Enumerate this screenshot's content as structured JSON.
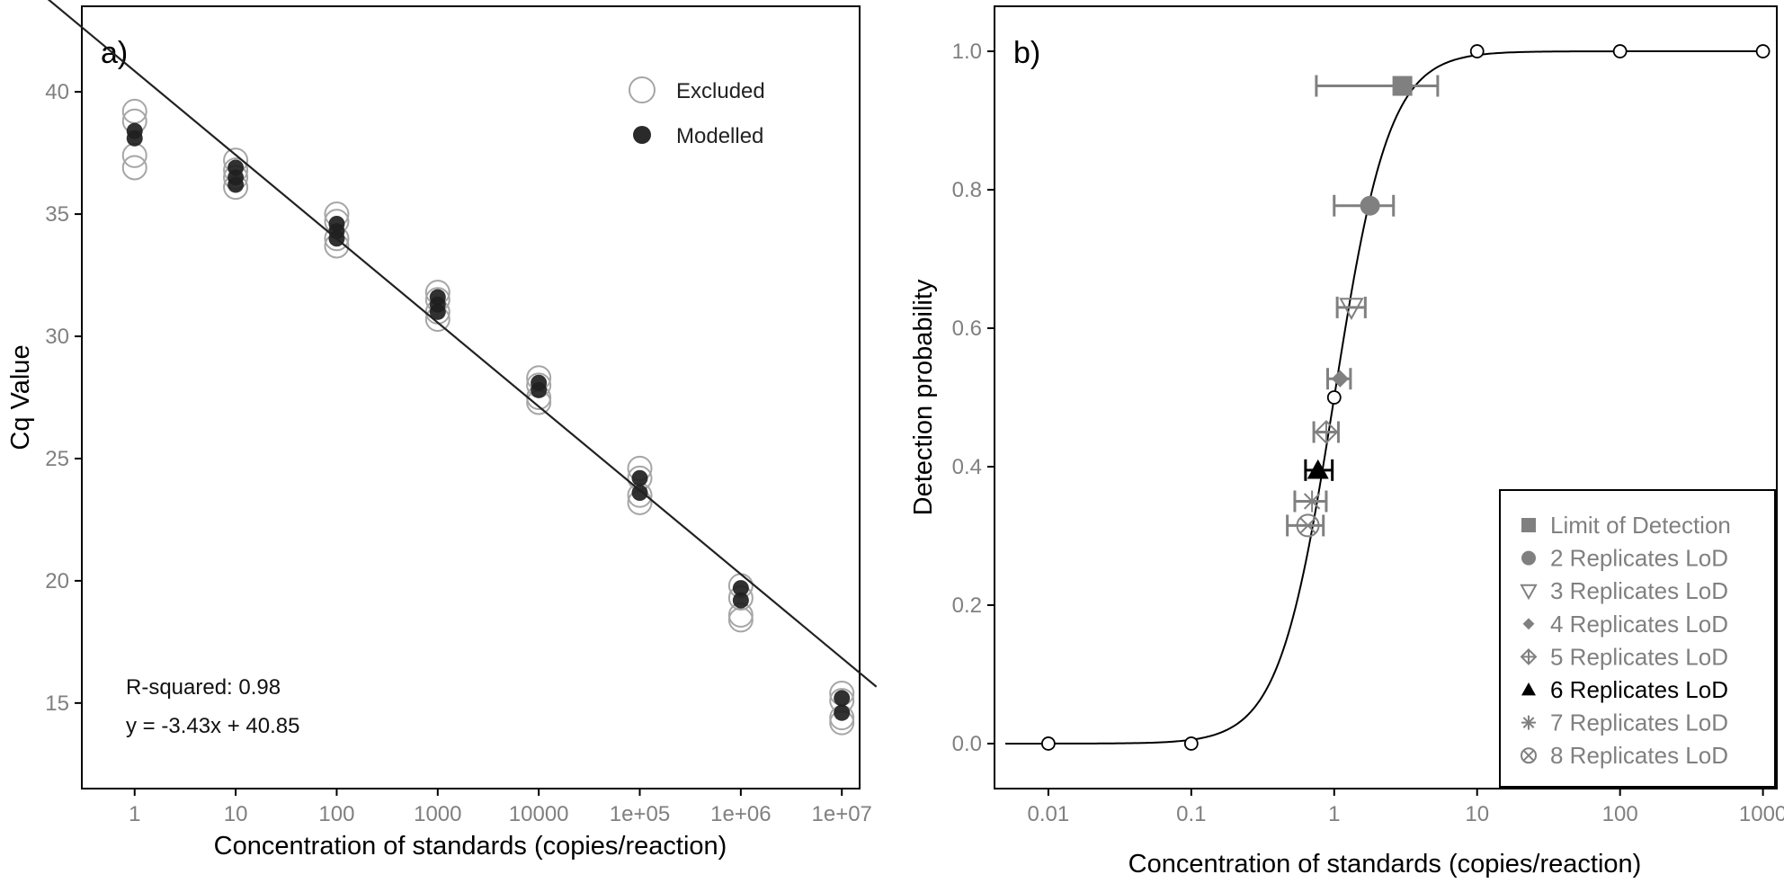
{
  "figure": {
    "panels": [
      "a)",
      "b)"
    ]
  },
  "colors": {
    "excluded": "#a6a6a6",
    "modelled": "#1f1f1f",
    "gray_marker": "#808080",
    "black_marker": "#000000",
    "axis": "#000000"
  },
  "chart_data": [
    {
      "id": "a",
      "type": "scatter",
      "panel_label": "a)",
      "xlabel": "Concentration of standards (copies/reaction)",
      "ylabel": "Cq Value",
      "x_scale": "log10",
      "x_ticks": [
        "1",
        "10",
        "100",
        "1000",
        "10000",
        "1e+05",
        "1e+06",
        "1e+07"
      ],
      "x_tick_values": [
        1,
        10,
        100,
        1000,
        10000,
        100000,
        1000000,
        10000000
      ],
      "xlim": [
        0.3,
        15000000
      ],
      "ylim": [
        11.5,
        43.5
      ],
      "y_ticks": [
        15,
        20,
        25,
        30,
        35,
        40
      ],
      "grid": false,
      "legend": {
        "position": "top-right",
        "entries": [
          {
            "label": "Excluded",
            "marker": "open-circle"
          },
          {
            "label": "Modelled",
            "marker": "filled-circle"
          }
        ]
      },
      "series": [
        {
          "name": "Excluded",
          "points": [
            {
              "x": 1,
              "y": 39.2
            },
            {
              "x": 1,
              "y": 38.8
            },
            {
              "x": 1,
              "y": 37.4
            },
            {
              "x": 1,
              "y": 36.9
            },
            {
              "x": 10,
              "y": 37.2
            },
            {
              "x": 10,
              "y": 36.8
            },
            {
              "x": 10,
              "y": 36.5
            },
            {
              "x": 10,
              "y": 36.1
            },
            {
              "x": 100,
              "y": 35.0
            },
            {
              "x": 100,
              "y": 34.7
            },
            {
              "x": 100,
              "y": 34.0
            },
            {
              "x": 100,
              "y": 33.7
            },
            {
              "x": 1000,
              "y": 31.8
            },
            {
              "x": 1000,
              "y": 31.5
            },
            {
              "x": 1000,
              "y": 31.0
            },
            {
              "x": 1000,
              "y": 30.7
            },
            {
              "x": 10000,
              "y": 28.3
            },
            {
              "x": 10000,
              "y": 28.0
            },
            {
              "x": 10000,
              "y": 27.5
            },
            {
              "x": 10000,
              "y": 27.3
            },
            {
              "x": 100000,
              "y": 24.6
            },
            {
              "x": 100000,
              "y": 24.2
            },
            {
              "x": 100000,
              "y": 23.5
            },
            {
              "x": 100000,
              "y": 23.2
            },
            {
              "x": 1000000,
              "y": 19.8
            },
            {
              "x": 1000000,
              "y": 19.3
            },
            {
              "x": 1000000,
              "y": 18.6
            },
            {
              "x": 1000000,
              "y": 18.4
            },
            {
              "x": 10000000,
              "y": 15.4
            },
            {
              "x": 10000000,
              "y": 15.1
            },
            {
              "x": 10000000,
              "y": 14.4
            },
            {
              "x": 10000000,
              "y": 14.2
            }
          ]
        },
        {
          "name": "Modelled",
          "points": [
            {
              "x": 1,
              "y": 38.4
            },
            {
              "x": 1,
              "y": 38.1
            },
            {
              "x": 10,
              "y": 36.9
            },
            {
              "x": 10,
              "y": 36.5
            },
            {
              "x": 10,
              "y": 36.2
            },
            {
              "x": 100,
              "y": 34.6
            },
            {
              "x": 100,
              "y": 34.3
            },
            {
              "x": 100,
              "y": 34.0
            },
            {
              "x": 1000,
              "y": 31.6
            },
            {
              "x": 1000,
              "y": 31.3
            },
            {
              "x": 1000,
              "y": 31.0
            },
            {
              "x": 10000,
              "y": 28.1
            },
            {
              "x": 10000,
              "y": 27.8
            },
            {
              "x": 100000,
              "y": 24.2
            },
            {
              "x": 100000,
              "y": 23.6
            },
            {
              "x": 1000000,
              "y": 19.7
            },
            {
              "x": 1000000,
              "y": 19.2
            },
            {
              "x": 10000000,
              "y": 15.2
            },
            {
              "x": 10000000,
              "y": 14.6
            }
          ]
        }
      ],
      "regression": {
        "slope": -3.43,
        "intercept": 40.85,
        "x_from": 0.13,
        "x_to": 22000000
      },
      "annotations": [
        "R-squared: 0.98",
        "y = -3.43x + 40.85"
      ]
    },
    {
      "id": "b",
      "type": "line",
      "panel_label": "b)",
      "xlabel": "Concentration of standards (copies/reaction)",
      "ylabel": "Detection probability",
      "x_scale": "log10",
      "x_ticks": [
        "0.01",
        "0.1",
        "1",
        "10",
        "100",
        "1000"
      ],
      "x_tick_values": [
        0.01,
        0.1,
        1,
        10,
        100,
        1000
      ],
      "xlim": [
        0.0042,
        1250
      ],
      "ylim": [
        -0.065,
        1.065
      ],
      "y_ticks": [
        "0.0",
        "0.2",
        "0.4",
        "0.6",
        "0.8",
        "1.0"
      ],
      "y_tick_values": [
        0,
        0.2,
        0.4,
        0.6,
        0.8,
        1.0
      ],
      "grid": false,
      "curve": {
        "model": "logistic-log10",
        "midpoint": 1.0,
        "slope": 5.2,
        "x_from": 0.005,
        "x_to": 1000
      },
      "observed_points": [
        {
          "x": 0.01,
          "y": 0.0
        },
        {
          "x": 0.1,
          "y": 0.0
        },
        {
          "x": 1,
          "y": 0.5
        },
        {
          "x": 10,
          "y": 1.0
        },
        {
          "x": 100,
          "y": 1.0
        },
        {
          "x": 1000,
          "y": 1.0
        }
      ],
      "lod_estimates": [
        {
          "name": "Limit of Detection",
          "marker": "square",
          "color": "#808080",
          "x": 3.0,
          "xmin": 0.75,
          "xmax": 5.3,
          "y": 0.95
        },
        {
          "name": "2 Replicates LoD",
          "marker": "circle",
          "color": "#808080",
          "x": 1.78,
          "xmin": 1.0,
          "xmax": 2.6,
          "y": 0.777
        },
        {
          "name": "3 Replicates LoD",
          "marker": "triangle-down-open",
          "color": "#808080",
          "x": 1.32,
          "xmin": 1.05,
          "xmax": 1.65,
          "y": 0.63
        },
        {
          "name": "4 Replicates LoD",
          "marker": "diamond",
          "color": "#808080",
          "x": 1.1,
          "xmin": 0.9,
          "xmax": 1.3,
          "y": 0.527
        },
        {
          "name": "5 Replicates LoD",
          "marker": "diamond-plus-open",
          "color": "#808080",
          "x": 0.88,
          "xmin": 0.72,
          "xmax": 1.07,
          "y": 0.45
        },
        {
          "name": "6 Replicates LoD",
          "marker": "triangle-up",
          "color": "#000000",
          "x": 0.77,
          "xmin": 0.63,
          "xmax": 0.97,
          "y": 0.395
        },
        {
          "name": "7 Replicates LoD",
          "marker": "asterisk",
          "color": "#808080",
          "x": 0.7,
          "xmin": 0.53,
          "xmax": 0.88,
          "y": 0.35
        },
        {
          "name": "8 Replicates LoD",
          "marker": "circle-x-open",
          "color": "#808080",
          "x": 0.655,
          "xmin": 0.47,
          "xmax": 0.84,
          "y": 0.315
        }
      ],
      "legend": {
        "position": "bottom-right",
        "entries": [
          {
            "label": "Limit of Detection",
            "marker": "square",
            "color": "#808080"
          },
          {
            "label": "2 Replicates LoD",
            "marker": "circle",
            "color": "#808080"
          },
          {
            "label": "3 Replicates LoD",
            "marker": "triangle-down-open",
            "color": "#808080"
          },
          {
            "label": "4 Replicates LoD",
            "marker": "diamond",
            "color": "#808080"
          },
          {
            "label": "5 Replicates LoD",
            "marker": "diamond-plus-open",
            "color": "#808080"
          },
          {
            "label": "6 Replicates LoD",
            "marker": "triangle-up",
            "color": "#000000"
          },
          {
            "label": "7 Replicates LoD",
            "marker": "asterisk",
            "color": "#808080"
          },
          {
            "label": "8 Replicates LoD",
            "marker": "circle-x-open",
            "color": "#808080"
          }
        ]
      }
    }
  ]
}
